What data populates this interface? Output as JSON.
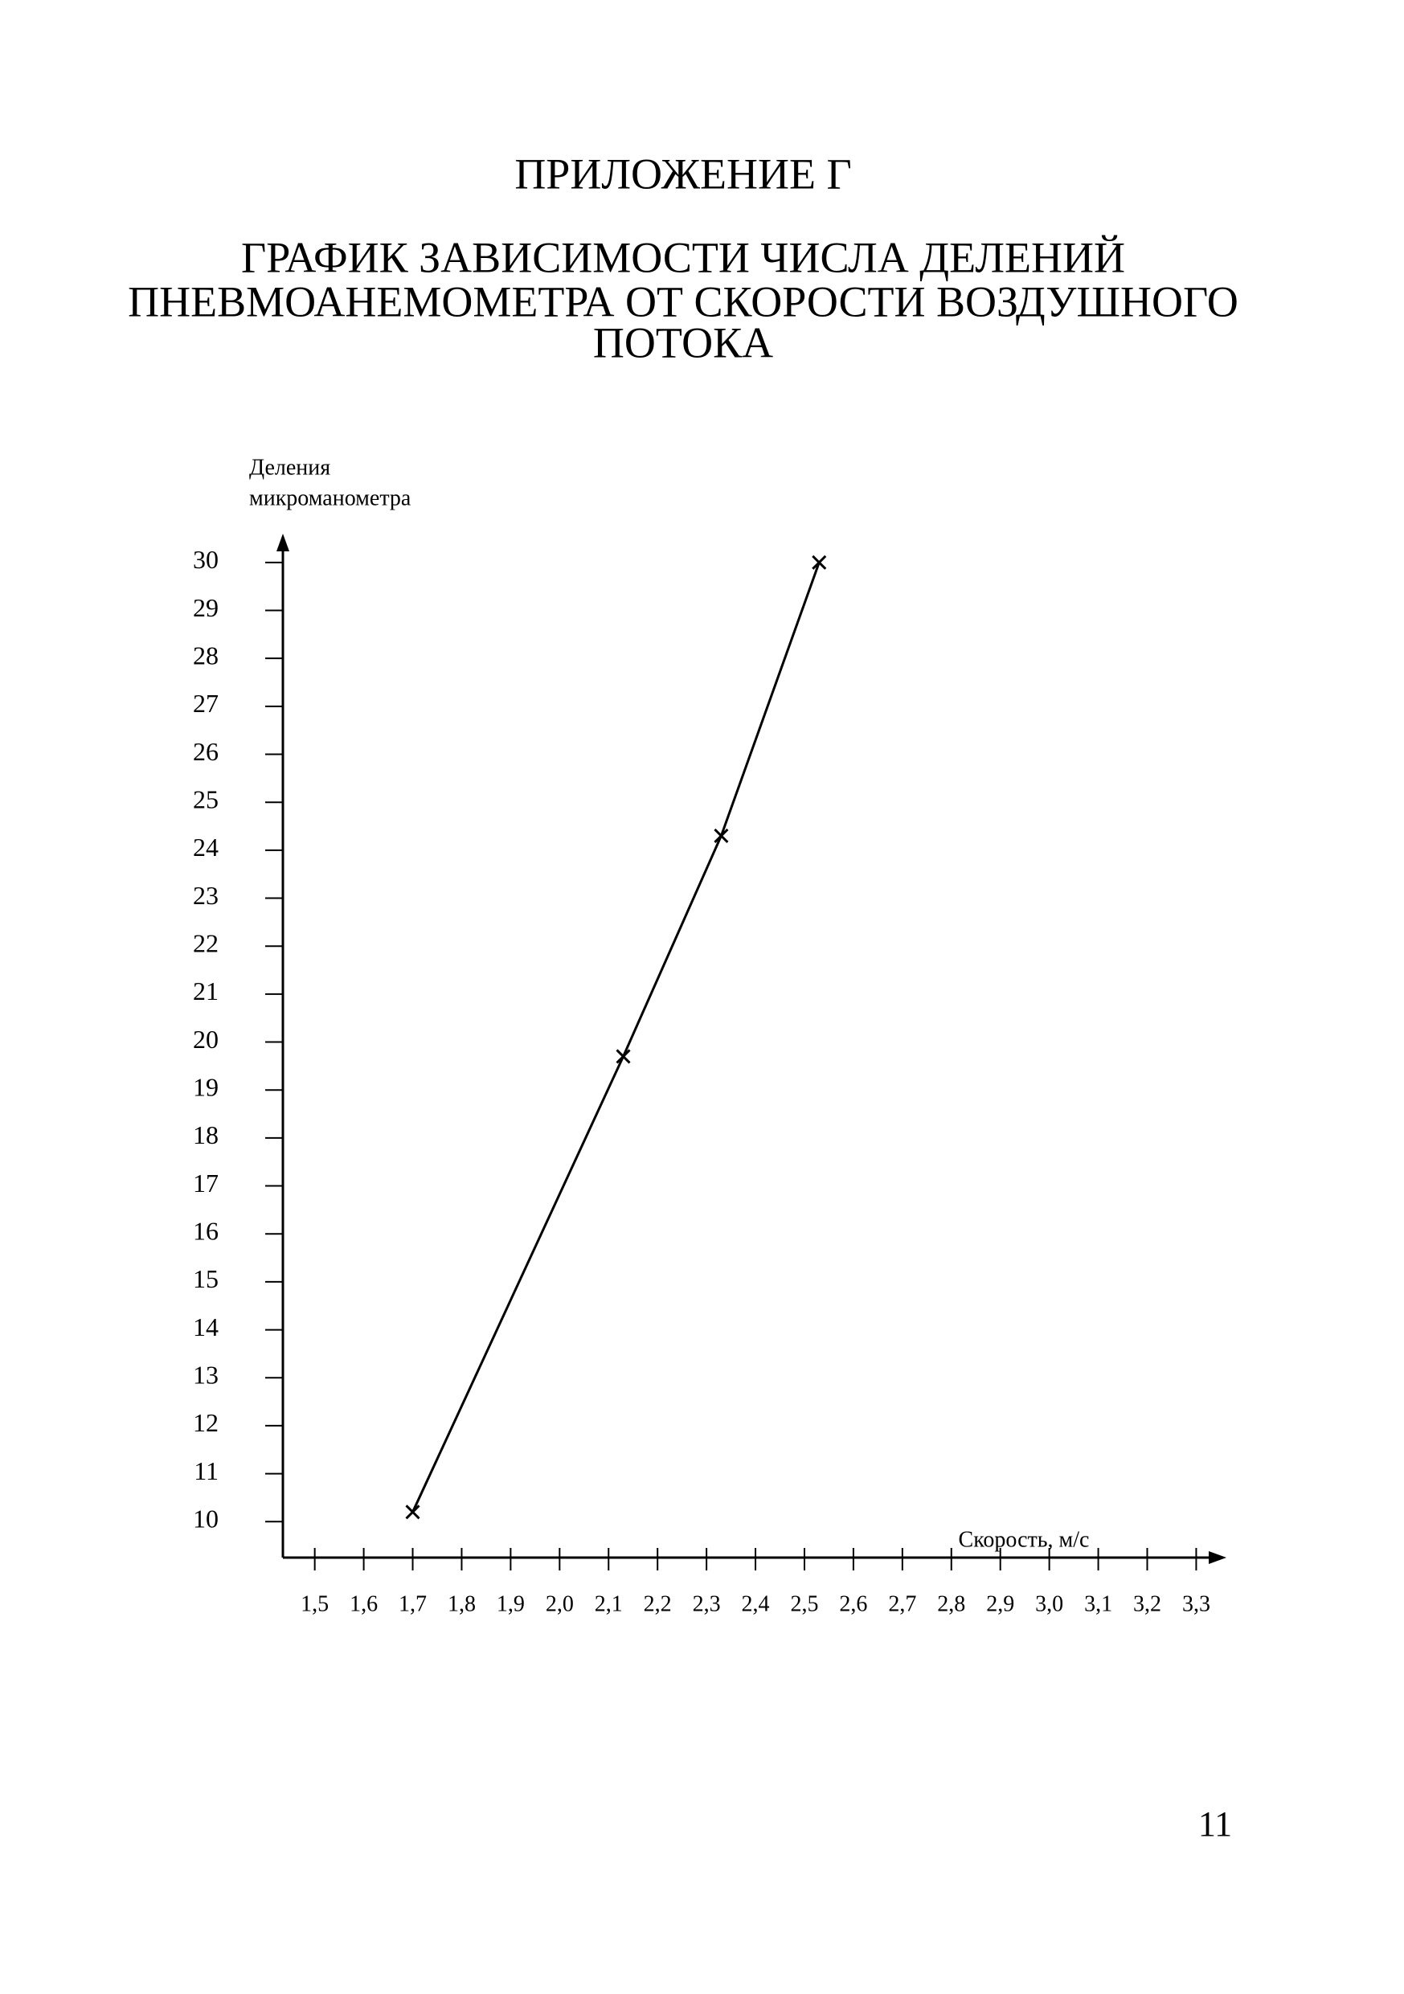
{
  "heading": "ПРИЛОЖЕНИЕ Г",
  "page_number": "11",
  "chart_data": {
    "type": "line",
    "title": [
      "ГРАФИК ЗАВИСИМОСТИ ЧИСЛА ДЕЛЕНИЙ",
      "ПНЕВМОАНЕМОМЕТРА ОТ СКОРОСТИ ВОЗДУШНОГО",
      "ПОТОКА"
    ],
    "y_label": [
      "Деления",
      "микроманометра"
    ],
    "x_label": "Скорость, м/с",
    "x": [
      1.7,
      2.13,
      2.33,
      2.53
    ],
    "values": [
      10.2,
      19.7,
      24.3,
      30
    ],
    "color": "#000000",
    "marker": "x",
    "xlim": [
      1.43,
      3.36
    ],
    "ylim": [
      9.25,
      30.5
    ],
    "xticks": [
      {
        "value": 1.5,
        "label": "1,5"
      },
      {
        "value": 1.6,
        "label": "1,6"
      },
      {
        "value": 1.7,
        "label": "1,7"
      },
      {
        "value": 1.8,
        "label": "1,8"
      },
      {
        "value": 1.9,
        "label": "1,9"
      },
      {
        "value": 2.0,
        "label": "2,0"
      },
      {
        "value": 2.1,
        "label": "2,1"
      },
      {
        "value": 2.2,
        "label": "2,2"
      },
      {
        "value": 2.3,
        "label": "2,3"
      },
      {
        "value": 2.4,
        "label": "2,4"
      },
      {
        "value": 2.5,
        "label": "2,5"
      },
      {
        "value": 2.6,
        "label": "2,6"
      },
      {
        "value": 2.7,
        "label": "2,7"
      },
      {
        "value": 2.8,
        "label": "2,8"
      },
      {
        "value": 2.9,
        "label": "2,9"
      },
      {
        "value": 3.0,
        "label": "3,0"
      },
      {
        "value": 3.1,
        "label": "3,1"
      },
      {
        "value": 3.2,
        "label": "3,2"
      },
      {
        "value": 3.3,
        "label": "3,3"
      }
    ],
    "yticks": [
      10,
      11,
      12,
      13,
      14,
      15,
      16,
      17,
      18,
      19,
      20,
      21,
      22,
      23,
      24,
      25,
      26,
      27,
      28,
      29,
      30
    ],
    "grid": false
  }
}
